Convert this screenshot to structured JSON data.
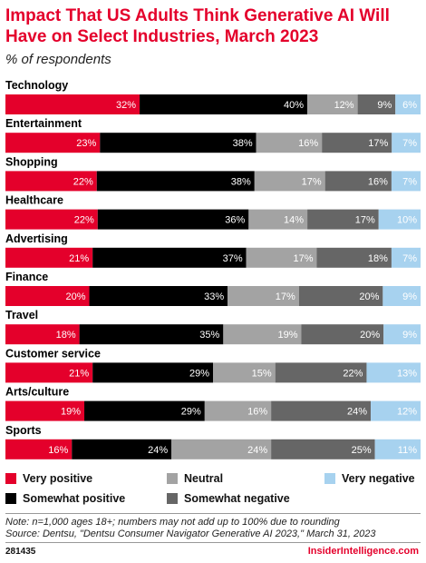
{
  "header": {
    "title": "Impact That US Adults Think Generative AI Will Have on Select Industries, March 2023",
    "subtitle": "% of respondents"
  },
  "chart_data": {
    "type": "bar",
    "stacked": true,
    "orientation": "horizontal",
    "unit": "%",
    "categories": [
      "Technology",
      "Entertainment",
      "Shopping",
      "Healthcare",
      "Advertising",
      "Finance",
      "Travel",
      "Customer service",
      "Arts/culture",
      "Sports"
    ],
    "series": [
      {
        "name": "Very positive",
        "color": "#e4002b",
        "values": [
          32,
          23,
          22,
          22,
          21,
          20,
          18,
          21,
          19,
          16
        ]
      },
      {
        "name": "Somewhat positive",
        "color": "#000000",
        "values": [
          40,
          38,
          38,
          36,
          37,
          33,
          35,
          29,
          29,
          24
        ]
      },
      {
        "name": "Neutral",
        "color": "#a3a3a3",
        "values": [
          12,
          16,
          17,
          14,
          17,
          17,
          19,
          15,
          16,
          24
        ]
      },
      {
        "name": "Somewhat negative",
        "color": "#666666",
        "values": [
          9,
          17,
          16,
          17,
          18,
          20,
          20,
          22,
          24,
          25
        ]
      },
      {
        "name": "Very negative",
        "color": "#a7d2ef",
        "values": [
          6,
          7,
          7,
          10,
          7,
          9,
          9,
          13,
          12,
          11
        ]
      }
    ],
    "legend_position": "bottom",
    "grid": false
  },
  "legend": {
    "very_positive": "Very positive",
    "somewhat_positive": "Somewhat positive",
    "neutral": "Neutral",
    "somewhat_negative": "Somewhat negative",
    "very_negative": "Very negative"
  },
  "footer": {
    "note": "Note: n=1,000 ages 18+; numbers may not add up to 100% due to rounding",
    "source": "Source: Dentsu, \"Dentsu Consumer Navigator Generative AI 2023,\" March 31, 2023",
    "chart_id": "281435",
    "brand": "InsiderIntelligence.com"
  }
}
